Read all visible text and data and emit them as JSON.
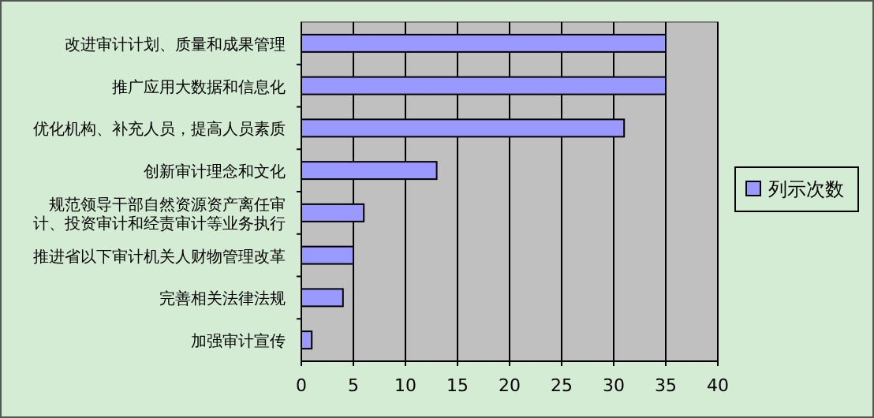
{
  "chart_data": {
    "type": "bar",
    "orientation": "horizontal",
    "categories": [
      "改进审计计划、质量和成果管理",
      "推广应用大数据和信息化",
      "优化机构、补充人员，提高人员素质",
      "创新审计理念和文化",
      "规范领导干部自然资源资产离任审计、投资审计和经责审计等业务执行",
      "推进省以下审计机关人财物管理改革",
      "完善相关法律法规",
      "加强审计宣传"
    ],
    "series": [
      {
        "name": "列示次数",
        "color": "#9999ff",
        "values": [
          35,
          35,
          31,
          13,
          6,
          5,
          4,
          1
        ]
      }
    ],
    "xlim": [
      0,
      40
    ],
    "xticks": [
      0,
      5,
      10,
      15,
      20,
      25,
      30,
      35,
      40
    ],
    "grid": "x",
    "legend": "right"
  }
}
